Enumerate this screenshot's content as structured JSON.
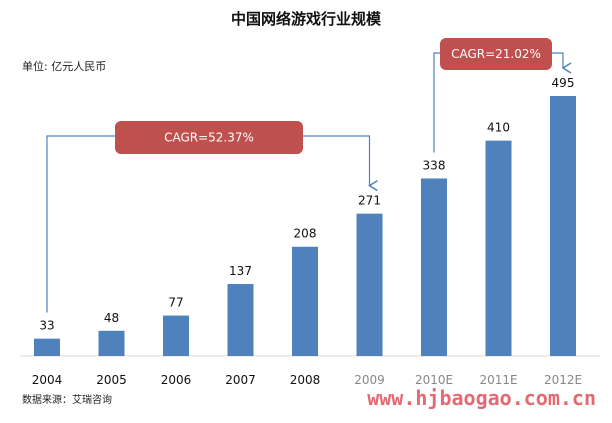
{
  "chart_data": {
    "type": "bar",
    "title": "中国网络游戏行业规模",
    "unit_label": "单位: 亿元人民币",
    "categories": [
      "2004",
      "2005",
      "2006",
      "2007",
      "2008",
      "2009",
      "2010E",
      "2011E",
      "2012E"
    ],
    "values": [
      33,
      48,
      77,
      137,
      208,
      271,
      338,
      410,
      495
    ],
    "data_labels": [
      "33",
      "48",
      "77",
      "137",
      "208",
      "271",
      "338",
      "410",
      "495"
    ],
    "bar_color": "#4f81bd",
    "ylim": [
      0,
      495
    ],
    "grid": false,
    "legend": "none",
    "annotations": [
      {
        "text": "CAGR=52.37%",
        "from": "2004",
        "to": "2009"
      },
      {
        "text": "CAGR=21.02%",
        "from": "2010E",
        "to": "2012E"
      }
    ],
    "callout_color": "#c0504d",
    "arrow_color": "#4f81bd"
  },
  "source": "数据来源：艾瑞咨询",
  "watermark": "www.hjbaogao.com.cn"
}
